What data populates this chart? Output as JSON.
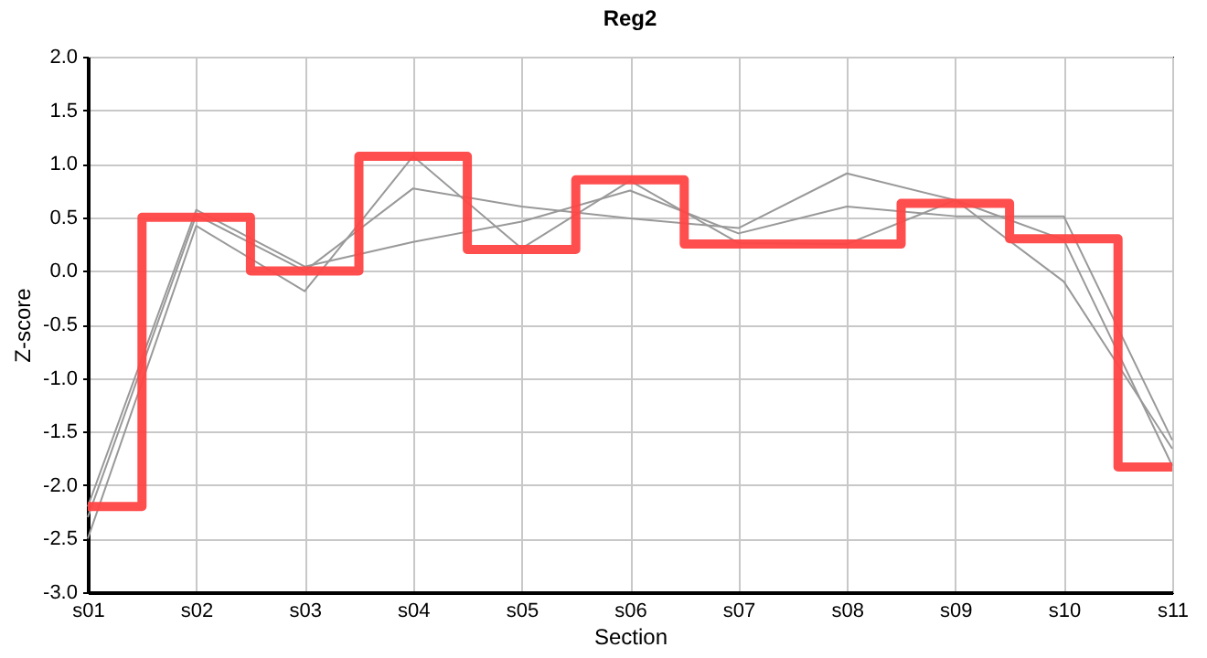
{
  "chart_data": {
    "type": "line",
    "title": "Reg2",
    "xlabel": "Section",
    "ylabel": "Z-score",
    "categories": [
      "s01",
      "s02",
      "s03",
      "s04",
      "s05",
      "s06",
      "s07",
      "s08",
      "s09",
      "s10",
      "s11"
    ],
    "ylim": [
      -3.0,
      2.0
    ],
    "yticks": [
      {
        "value": -3,
        "label": "-3.0"
      },
      {
        "value": -2.5,
        "label": "-2.5"
      },
      {
        "value": -2,
        "label": "-2.0"
      },
      {
        "value": -1.5,
        "label": "-1.5"
      },
      {
        "value": -1,
        "label": "-1.0"
      },
      {
        "value": -0.5,
        "label": "-0.5"
      },
      {
        "value": 0,
        "label": "0.0"
      },
      {
        "value": 0.5,
        "label": "0.5"
      },
      {
        "value": 1,
        "label": "1.0"
      },
      {
        "value": 1.5,
        "label": "1.5"
      },
      {
        "value": 2,
        "label": "2.0"
      }
    ],
    "grid": true,
    "legend": false,
    "marker": "none",
    "line_style": "solid",
    "series": [
      {
        "type": "line",
        "color": "#999999",
        "values": [
          -2.5,
          0.42,
          -0.19,
          1.07,
          0.21,
          0.84,
          0.26,
          0.25,
          0.66,
          0.29,
          -1.82
        ]
      },
      {
        "type": "line",
        "color": "#999999",
        "values": [
          -2.3,
          0.52,
          0.0,
          0.77,
          0.6,
          0.49,
          0.4,
          0.91,
          0.66,
          -0.1,
          -1.66
        ]
      },
      {
        "type": "line",
        "color": "#999999",
        "values": [
          -2.2,
          0.57,
          0.04,
          0.27,
          0.46,
          0.75,
          0.35,
          0.6,
          0.51,
          0.51,
          -1.58
        ]
      },
      {
        "type": "step",
        "color": "#ff4444",
        "values": [
          -2.2,
          0.5,
          0.0,
          1.07,
          0.2,
          0.85,
          0.25,
          0.25,
          0.63,
          0.3,
          -1.83
        ]
      }
    ]
  }
}
